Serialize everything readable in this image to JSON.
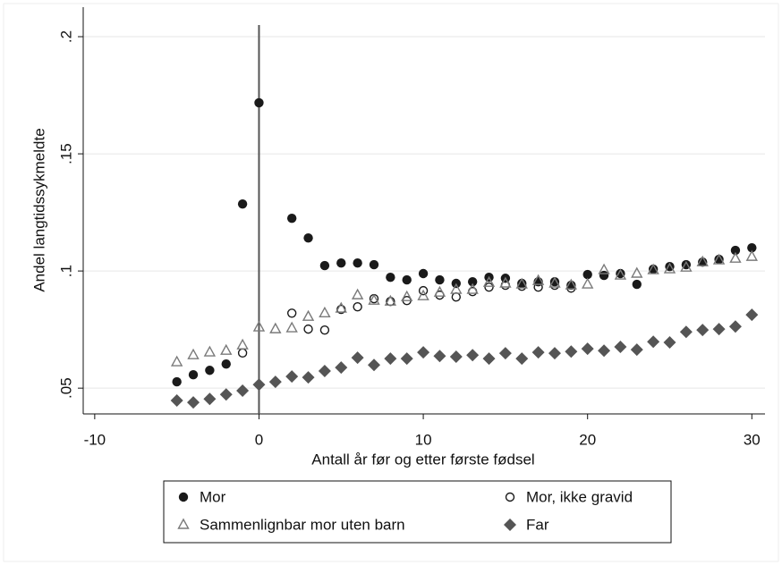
{
  "chart_data": {
    "type": "scatter",
    "x_label": "Antall år før og etter første fødsel",
    "y_label": "Andel langtidssykmeldte",
    "xlim": [
      -10.7,
      30.8
    ],
    "xticks": [
      -10,
      0,
      10,
      20,
      30
    ],
    "ylim": [
      0.039,
      0.2126
    ],
    "yticks": [
      {
        "value": 0.05,
        "label": ".05"
      },
      {
        "value": 0.1,
        "label": ".1"
      },
      {
        "value": 0.15,
        "label": ".15"
      },
      {
        "value": 0.2,
        "label": ".2"
      }
    ],
    "grid": true,
    "reference_line_x": 0,
    "legend": "bottom",
    "series": [
      {
        "name": "Mor",
        "color": "#1a1a1a",
        "marker": "circle-filled",
        "x": [
          -5,
          -4,
          -3,
          -2,
          -1,
          0,
          2,
          3,
          4,
          5,
          6,
          7,
          8,
          9,
          10,
          11,
          12,
          13,
          14,
          15,
          16,
          17,
          18,
          19,
          20,
          21,
          22,
          23,
          24,
          25,
          26,
          27,
          28,
          29,
          30
        ],
        "values": [
          0.0527,
          0.0557,
          0.0576,
          0.0603,
          0.1286,
          0.1718,
          0.1225,
          0.1141,
          0.1023,
          0.1034,
          0.1034,
          0.1027,
          0.0973,
          0.0962,
          0.0989,
          0.0962,
          0.0947,
          0.0954,
          0.0973,
          0.0969,
          0.0947,
          0.0954,
          0.0954,
          0.0939,
          0.0985,
          0.0981,
          0.0989,
          0.0943,
          0.1008,
          0.1019,
          0.1027,
          0.1038,
          0.105,
          0.1088,
          0.1099
        ]
      },
      {
        "name": "Mor, ikke gravid",
        "color": "#1a1a1a",
        "marker": "circle-open",
        "x": [
          -1,
          2,
          3,
          4,
          5,
          6,
          7,
          8,
          9,
          10,
          11,
          12,
          13,
          14,
          15,
          16,
          17,
          18,
          19
        ],
        "values": [
          0.065,
          0.082,
          0.0752,
          0.0748,
          0.0836,
          0.0847,
          0.0882,
          0.087,
          0.0874,
          0.0916,
          0.0897,
          0.0889,
          0.0912,
          0.0931,
          0.0939,
          0.0935,
          0.0931,
          0.0939,
          0.0927
        ]
      },
      {
        "name": "Sammenlignbar mor uten barn",
        "color": "#7a7a7a",
        "marker": "triangle-open",
        "x": [
          -5,
          -4,
          -3,
          -2,
          -1,
          0,
          1,
          2,
          3,
          4,
          5,
          6,
          7,
          8,
          9,
          10,
          11,
          12,
          13,
          14,
          15,
          16,
          17,
          18,
          19,
          20,
          21,
          22,
          23,
          24,
          25,
          26,
          27,
          28,
          29,
          30
        ],
        "values": [
          0.0611,
          0.0641,
          0.0653,
          0.066,
          0.0683,
          0.076,
          0.0752,
          0.0756,
          0.0805,
          0.082,
          0.084,
          0.0897,
          0.0874,
          0.087,
          0.0889,
          0.0893,
          0.0908,
          0.092,
          0.092,
          0.095,
          0.0947,
          0.0943,
          0.0958,
          0.0947,
          0.0939,
          0.0943,
          0.1004,
          0.0981,
          0.0989,
          0.1004,
          0.1008,
          0.1015,
          0.1038,
          0.1046,
          0.1053,
          0.1061
        ]
      },
      {
        "name": "Far",
        "color": "#555555",
        "marker": "diamond-filled",
        "x": [
          -5,
          -4,
          -3,
          -2,
          -1,
          0,
          1,
          2,
          3,
          4,
          5,
          6,
          7,
          8,
          9,
          10,
          11,
          12,
          13,
          14,
          15,
          16,
          17,
          18,
          19,
          20,
          21,
          22,
          23,
          24,
          25,
          26,
          27,
          28,
          29,
          30
        ],
        "values": [
          0.0447,
          0.0439,
          0.0454,
          0.0473,
          0.0489,
          0.0515,
          0.0527,
          0.055,
          0.0546,
          0.0573,
          0.0588,
          0.063,
          0.0599,
          0.0626,
          0.0626,
          0.0653,
          0.0637,
          0.0634,
          0.0641,
          0.0626,
          0.0649,
          0.0626,
          0.0653,
          0.0649,
          0.0656,
          0.0668,
          0.066,
          0.0676,
          0.0664,
          0.0698,
          0.0695,
          0.074,
          0.0748,
          0.0752,
          0.0763,
          0.0813
        ]
      }
    ]
  }
}
